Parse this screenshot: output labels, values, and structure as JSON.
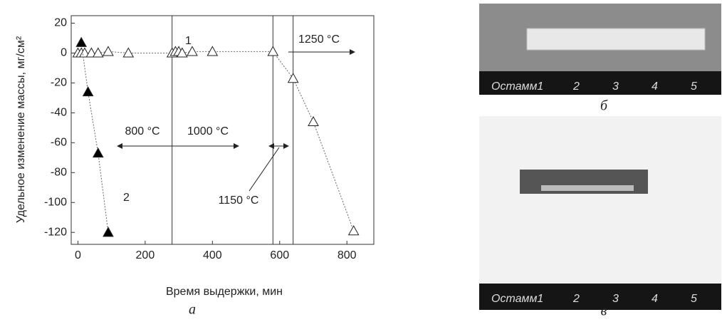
{
  "chart_data": {
    "type": "scatter",
    "x_label": "Время выдержки, мин",
    "y_label": "Удельное изменение массы, мг/см²",
    "xlim": [
      -20,
      880
    ],
    "ylim": [
      -128,
      25
    ],
    "xticks": [
      0,
      200,
      400,
      600,
      800
    ],
    "yticks": [
      20,
      0,
      -20,
      -40,
      -60,
      -80,
      -100,
      -120
    ],
    "vlines": [
      280,
      580,
      640
    ],
    "series": [
      {
        "name": "1",
        "color": "#ffffff",
        "x": [
          0,
          10,
          20,
          40,
          60,
          90,
          150,
          280,
          290,
          300,
          310,
          340,
          400,
          580,
          640,
          700,
          820
        ],
        "values": [
          0,
          0,
          0,
          0,
          0,
          1,
          0,
          0,
          1,
          1,
          0,
          1,
          1,
          1,
          -17,
          -46,
          -119
        ]
      },
      {
        "name": "2",
        "color": "#000000",
        "x": [
          10,
          30,
          60,
          90
        ],
        "values": [
          7,
          -26,
          -67,
          -120
        ]
      }
    ],
    "annotations": [
      "800 °C",
      "1000 °C",
      "1150 °C",
      "1250 °C"
    ],
    "panel_label": "а"
  },
  "photos": {
    "b": {
      "panel_label": "б",
      "ruler": [
        "Остамм1",
        "2",
        "3",
        "4",
        "5"
      ]
    },
    "c": {
      "panel_label": "в",
      "ruler": [
        "Остамм1",
        "2",
        "3",
        "4",
        "5"
      ]
    }
  }
}
